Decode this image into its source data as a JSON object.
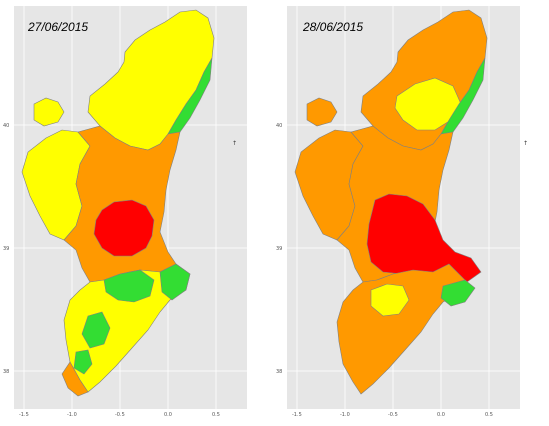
{
  "colors": {
    "background": "#e6e6e6",
    "grid": "#ffffff",
    "yellow": "#ffff00",
    "orange": "#ff9900",
    "red": "#ff0000",
    "green": "#33dd33",
    "border": "#808080"
  },
  "axes": {
    "x_ticks": [
      "-1.5",
      "-1.0",
      "-0.5",
      "0.0",
      "0.5"
    ],
    "y_ticks": [
      "40",
      "39",
      "38"
    ]
  },
  "compass_symbol": "↑",
  "maps": [
    {
      "date": "27/06/2015"
    },
    {
      "date": "28/06/2015"
    }
  ]
}
